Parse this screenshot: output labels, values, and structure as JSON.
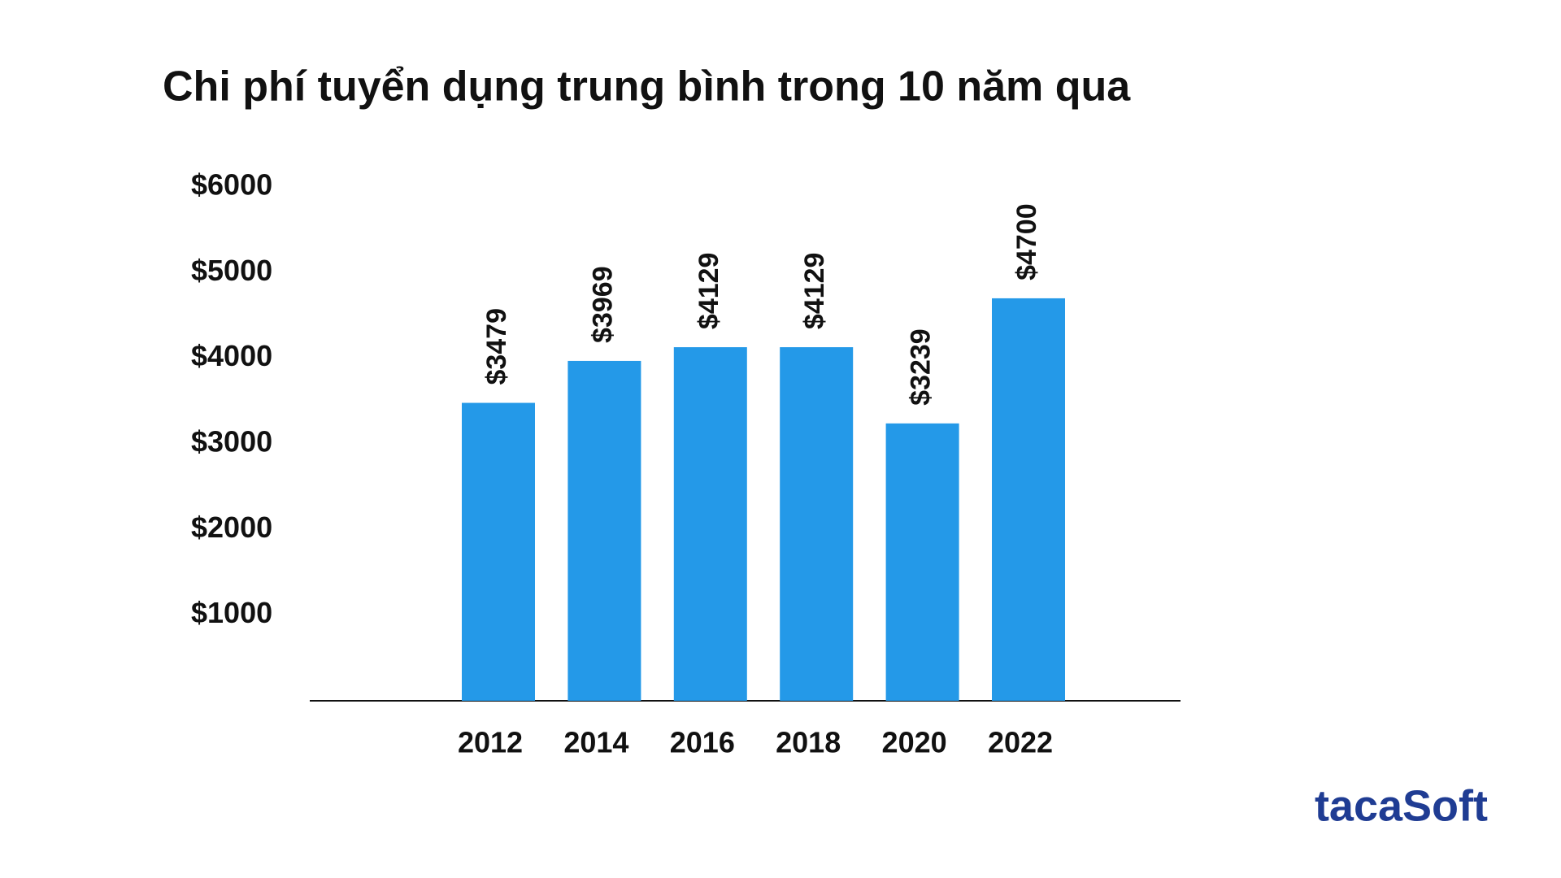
{
  "chart_data": {
    "type": "bar",
    "title": "Chi phí tuyển dụng trung bình trong 10 năm qua",
    "categories": [
      "2012",
      "2014",
      "2016",
      "2018",
      "2020",
      "2022"
    ],
    "values": [
      3479,
      3969,
      4129,
      4129,
      3239,
      4700
    ],
    "value_labels": [
      "$3479",
      "$3969",
      "$4129",
      "$4129",
      "$3239",
      "$4700"
    ],
    "color": "#2499e8",
    "ylim": [
      0,
      6000
    ],
    "yticks": [
      {
        "value": 1000,
        "label": "$1000"
      },
      {
        "value": 2000,
        "label": "$2000"
      },
      {
        "value": 3000,
        "label": "$3000"
      },
      {
        "value": 4000,
        "label": "$4000"
      },
      {
        "value": 5000,
        "label": "$5000"
      },
      {
        "value": 6000,
        "label": "$6000"
      }
    ],
    "grid": false
  },
  "brand": "tacaSoft"
}
